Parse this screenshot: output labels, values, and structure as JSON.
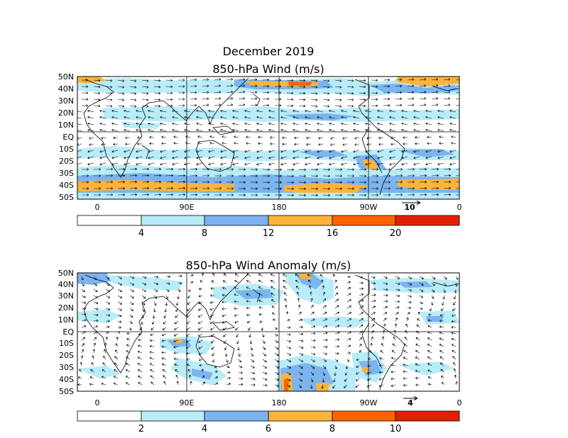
{
  "figure": {
    "title": "December 2019",
    "colors": {
      "white": "#ffffff",
      "light_cyan": "#b8ecf8",
      "light_blue": "#7cb4f0",
      "yellow_orange": "#fcb43c",
      "orange": "#fc6400",
      "red": "#e02000",
      "outline": "#000000"
    }
  },
  "panels": [
    {
      "title": "850-hPa Wind (m/s)",
      "lat_labels": [
        "50N",
        "40N",
        "30N",
        "20N",
        "10N",
        "EQ",
        "10S",
        "20S",
        "30S",
        "40S",
        "50S"
      ],
      "lon_labels": [
        "0",
        "90E",
        "180",
        "90W",
        "0"
      ],
      "reference_vector": {
        "label": "10",
        "magnitude": 10,
        "unit": "m/s"
      },
      "colorbar": {
        "boundaries": [
          "4",
          "8",
          "12",
          "16",
          "20"
        ],
        "colors": [
          "#ffffff",
          "#b8ecf8",
          "#7cb4f0",
          "#fcb43c",
          "#fc6400",
          "#e02000"
        ]
      }
    },
    {
      "title": "850-hPa Wind Anomaly (m/s)",
      "lat_labels": [
        "50N",
        "40N",
        "30N",
        "20N",
        "10N",
        "EQ",
        "10S",
        "20S",
        "30S",
        "40S",
        "50S"
      ],
      "lon_labels": [
        "0",
        "90E",
        "180",
        "90W",
        "0"
      ],
      "reference_vector": {
        "label": "4",
        "magnitude": 4,
        "unit": "m/s"
      },
      "colorbar": {
        "boundaries": [
          "2",
          "4",
          "6",
          "8",
          "10"
        ],
        "colors": [
          "#ffffff",
          "#b8ecf8",
          "#7cb4f0",
          "#fcb43c",
          "#fc6400",
          "#e02000"
        ]
      }
    }
  ]
}
